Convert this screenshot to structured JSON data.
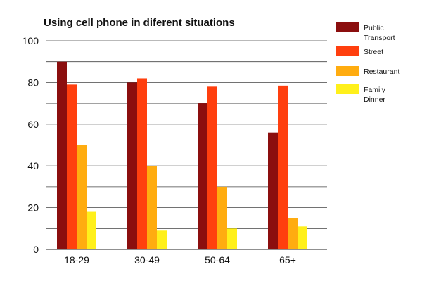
{
  "chart_data": {
    "type": "bar",
    "title": "Using cell phone in diferent situations",
    "xlabel": "",
    "ylabel": "",
    "categories": [
      "18-29",
      "30-49",
      "50-64",
      "65+"
    ],
    "ylim": [
      0,
      100
    ],
    "yticks": [
      0,
      20,
      40,
      60,
      80,
      100
    ],
    "grid": true,
    "legend_position": "right",
    "series": [
      {
        "name": "Public Transport",
        "color": "#8b0e0e",
        "values": [
          90,
          80,
          70,
          56
        ]
      },
      {
        "name": "Street",
        "color": "#ff3f0e",
        "values": [
          79,
          82,
          78,
          78.5
        ]
      },
      {
        "name": "Restaurant",
        "color": "#ffac10",
        "values": [
          50,
          40,
          30,
          15
        ]
      },
      {
        "name": "Family Dinner",
        "color": "#fff01b",
        "values": [
          18,
          9,
          10,
          11
        ]
      }
    ]
  }
}
